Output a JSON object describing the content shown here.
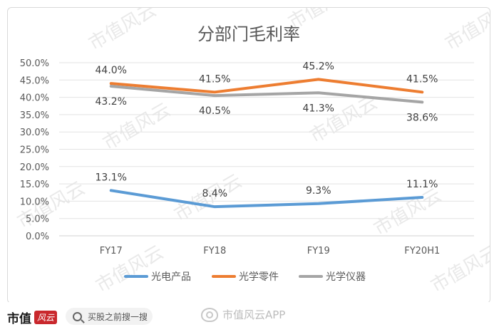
{
  "chart_data": {
    "type": "line",
    "title": "分部门毛利率",
    "categories": [
      "FY17",
      "FY18",
      "FY19",
      "FY20H1"
    ],
    "ylim": [
      0,
      50
    ],
    "yticks": [
      "0.0%",
      "5.0%",
      "10.0%",
      "15.0%",
      "20.0%",
      "25.0%",
      "30.0%",
      "35.0%",
      "40.0%",
      "45.0%",
      "50.0%"
    ],
    "grid": true,
    "legend_position": "bottom",
    "series": [
      {
        "name": "光电产品",
        "color": "#5b9bd5",
        "values": [
          13.1,
          8.4,
          9.3,
          11.1
        ],
        "labels": [
          "13.1%",
          "8.4%",
          "9.3%",
          "11.1%"
        ],
        "label_side": "above"
      },
      {
        "name": "光学零件",
        "color": "#ed7d31",
        "values": [
          44.0,
          41.5,
          45.2,
          41.5
        ],
        "labels": [
          "44.0%",
          "41.5%",
          "45.2%",
          "41.5%"
        ],
        "label_side": "above"
      },
      {
        "name": "光学仪器",
        "color": "#a5a5a5",
        "values": [
          43.2,
          40.5,
          41.3,
          38.6
        ],
        "labels": [
          "43.2%",
          "40.5%",
          "41.3%",
          "38.6%"
        ],
        "label_side": "below"
      }
    ]
  },
  "watermark": "市值风云",
  "footer": {
    "brand": "市值",
    "brand_badge": "风云",
    "search_placeholder": "买股之前搜一搜",
    "weibo": "市值风云APP"
  }
}
